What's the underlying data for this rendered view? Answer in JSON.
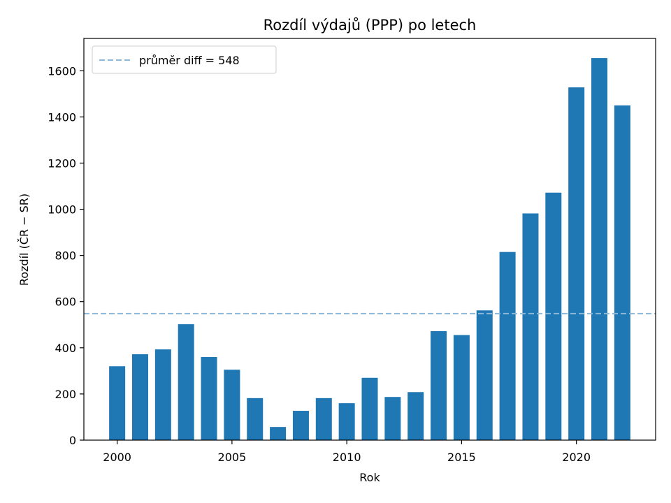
{
  "chart_data": {
    "type": "bar",
    "title": "Rozdíl výdajů (PPP) po letech",
    "xlabel": "Rok",
    "ylabel": "Rozdíl (ČR − SR)",
    "x": [
      2000,
      2001,
      2002,
      2003,
      2004,
      2005,
      2006,
      2007,
      2008,
      2009,
      2010,
      2011,
      2012,
      2013,
      2014,
      2015,
      2016,
      2017,
      2018,
      2019,
      2020,
      2021,
      2022
    ],
    "values": [
      320,
      372,
      393,
      502,
      360,
      305,
      182,
      57,
      127,
      182,
      160,
      270,
      187,
      208,
      472,
      455,
      562,
      815,
      982,
      1072,
      1528,
      1655,
      1450
    ],
    "xlim": [
      1998.55,
      2023.45
    ],
    "ylim": [
      0,
      1740
    ],
    "xticks": [
      2000,
      2005,
      2010,
      2015,
      2020
    ],
    "yticks": [
      0,
      200,
      400,
      600,
      800,
      1000,
      1200,
      1400,
      1600
    ],
    "bar_color": "#1f77b4",
    "reference_line": {
      "value": 548,
      "label": "průměr diff = 548",
      "color": "#8cb8da",
      "style": "dashed"
    },
    "legend": "top-left",
    "grid": false
  }
}
